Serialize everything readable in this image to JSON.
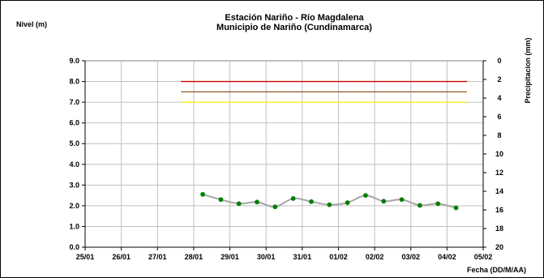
{
  "chart_data": {
    "type": "line",
    "title": "Estación Nariño  - Río Magdalena",
    "subtitle": "Municipio de Nariño (Cundinamarca)",
    "ylabel": "Nivel (m)",
    "y2label": "Precipitacion (mm)",
    "xlabel": "Fecha (DD/M/AA)",
    "x_tick_labels": [
      "25/01",
      "26/01",
      "27/01",
      "28/01",
      "29/01",
      "30/01",
      "31/01",
      "01/02",
      "02/02",
      "03/02",
      "04/02",
      "05/02"
    ],
    "y_tick_labels": [
      "0.0",
      "1.0",
      "2.0",
      "3.0",
      "4.0",
      "5.0",
      "6.0",
      "7.0",
      "8.0",
      "9.0"
    ],
    "y2_tick_labels": [
      "0",
      "2",
      "4",
      "6",
      "8",
      "10",
      "12",
      "14",
      "16",
      "18",
      "20"
    ],
    "xlim": [
      0,
      11
    ],
    "ylim": [
      0,
      9
    ],
    "y2lim": [
      0,
      20
    ],
    "y2_inverted": true,
    "grid": true,
    "series": [
      {
        "x": [
          3.25,
          3.75,
          4.25,
          4.75,
          5.25,
          5.75,
          6.25,
          6.75,
          7.25,
          7.75,
          8.25,
          8.75,
          9.25,
          9.75,
          10.25
        ],
        "values": [
          2.55,
          2.3,
          2.1,
          2.18,
          1.95,
          2.35,
          2.2,
          2.05,
          2.15,
          2.5,
          2.22,
          2.3,
          2.02,
          2.1,
          1.9
        ],
        "line_color": "#a6a6a6",
        "marker_color": "#008000"
      }
    ],
    "thresholds": [
      {
        "value": 8.0,
        "x_start": 2.65,
        "x_end": 10.55,
        "color": "#cc0000"
      },
      {
        "value": 7.5,
        "x_start": 2.65,
        "x_end": 10.55,
        "color": "#996633"
      },
      {
        "value": 7.0,
        "x_start": 2.65,
        "x_end": 10.55,
        "color": "#ffee00"
      }
    ]
  }
}
